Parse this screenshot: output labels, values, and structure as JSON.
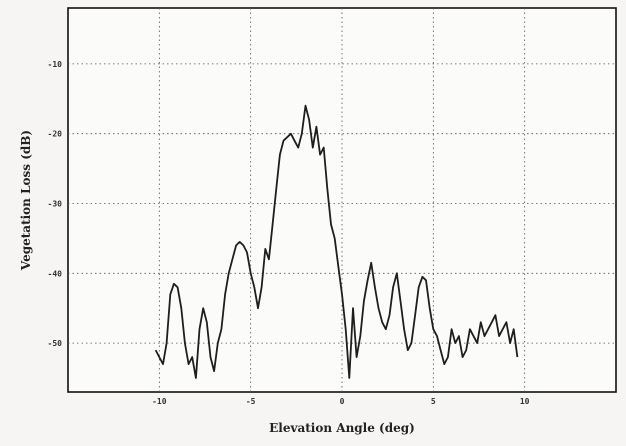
{
  "chart_data": {
    "type": "line",
    "xlabel": "Elevation Angle (deg)",
    "ylabel": "Vegetation Loss (dB)",
    "xlim": [
      -15,
      15
    ],
    "ylim": [
      -57,
      -2
    ],
    "x_ticks": [
      -10,
      -5,
      0,
      5,
      10
    ],
    "x_tick_labels": [
      "-10",
      "-5",
      "0",
      "5",
      "10"
    ],
    "y_ticks": [
      -10,
      -20,
      -30,
      -40,
      -50
    ],
    "y_tick_labels": [
      "-10",
      "-20",
      "-30",
      "-40",
      "-50"
    ],
    "grid": true,
    "series": [
      {
        "values_x": [
          -10.2,
          -10.0,
          -9.8,
          -9.6,
          -9.4,
          -9.2,
          -9.0,
          -8.8,
          -8.6,
          -8.4,
          -8.2,
          -8.0,
          -7.8,
          -7.6,
          -7.4,
          -7.2,
          -7.0,
          -6.8,
          -6.6,
          -6.4,
          -6.2,
          -6.0,
          -5.8,
          -5.6,
          -5.4,
          -5.2,
          -5.0,
          -4.8,
          -4.6,
          -4.4,
          -4.2,
          -4.0,
          -3.8,
          -3.6,
          -3.4,
          -3.2,
          -3.0,
          -2.8,
          -2.6,
          -2.4,
          -2.2,
          -2.0,
          -1.8,
          -1.6,
          -1.4,
          -1.2,
          -1.0,
          -0.8,
          -0.6,
          -0.4,
          -0.2,
          0.0,
          0.2,
          0.4,
          0.6,
          0.8,
          1.0,
          1.2,
          1.4,
          1.6,
          1.8,
          2.0,
          2.2,
          2.4,
          2.6,
          2.8,
          3.0,
          3.2,
          3.4,
          3.6,
          3.8,
          4.0,
          4.2,
          4.4,
          4.6,
          4.8,
          5.0,
          5.2,
          5.4,
          5.6,
          5.8,
          6.0,
          6.2,
          6.4,
          6.6,
          6.8,
          7.0,
          7.2,
          7.4,
          7.6,
          7.8,
          8.0,
          8.2,
          8.4,
          8.6,
          8.8,
          9.0,
          9.2,
          9.4,
          9.6
        ],
        "values_y": [
          -51,
          -52,
          -53,
          -50,
          -43,
          -41.5,
          -42,
          -45,
          -50,
          -53,
          -52,
          -55,
          -48,
          -45,
          -47,
          -52,
          -54,
          -50,
          -48,
          -43,
          -40,
          -38,
          -36,
          -35.5,
          -36,
          -37,
          -40,
          -42,
          -45,
          -42,
          -36.5,
          -38,
          -33,
          -28,
          -23,
          -21,
          -20.5,
          -20,
          -21,
          -22,
          -20,
          -16,
          -18,
          -22,
          -19,
          -23,
          -22,
          -28,
          -33,
          -35,
          -39,
          -43,
          -48,
          -55,
          -45,
          -52,
          -49,
          -44,
          -41,
          -38.5,
          -42,
          -45,
          -47,
          -48,
          -46,
          -42,
          -40,
          -44,
          -48,
          -51,
          -50,
          -46,
          -42,
          -40.5,
          -41,
          -45,
          -48,
          -49,
          -51,
          -53,
          -52,
          -48,
          -50,
          -49,
          -52,
          -51,
          -48,
          -49,
          -50,
          -47,
          -49,
          -48,
          -47,
          -46,
          -49,
          -48,
          -47,
          -50,
          -48,
          -52
        ]
      }
    ]
  }
}
